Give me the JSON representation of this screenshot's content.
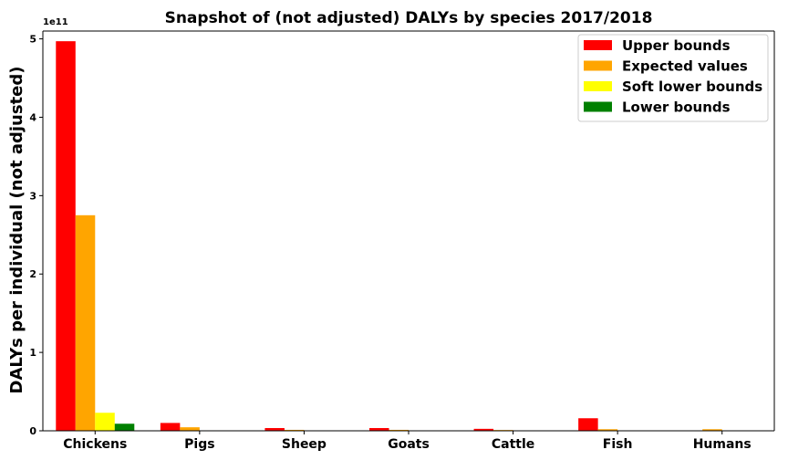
{
  "chart_data": {
    "type": "bar",
    "title": "Snapshot of (not adjusted) DALYs by species 2017/2018",
    "xlabel": "",
    "ylabel": "DALYs per individual (not adjusted)",
    "y_offset_label": "1e11",
    "ylim": [
      0,
      5.1
    ],
    "yticks": [
      "0",
      "1",
      "2",
      "3",
      "4",
      "5"
    ],
    "categories": [
      "Chickens",
      "Pigs",
      "Sheep",
      "Goats",
      "Cattle",
      "Fish",
      "Humans"
    ],
    "series": [
      {
        "name": "Upper bounds",
        "color": "#ff0000",
        "values": [
          4.97,
          0.1,
          0.035,
          0.035,
          0.025,
          0.16,
          0.0
        ]
      },
      {
        "name": "Expected values",
        "color": "#ffa500",
        "values": [
          2.75,
          0.045,
          0.012,
          0.012,
          0.01,
          0.02,
          0.02
        ]
      },
      {
        "name": "Soft lower bounds",
        "color": "#ffff00",
        "values": [
          0.23,
          0.005,
          0.002,
          0.002,
          0.002,
          0.003,
          0.0
        ]
      },
      {
        "name": "Lower bounds",
        "color": "#008000",
        "values": [
          0.09,
          0.002,
          0.001,
          0.001,
          0.001,
          0.001,
          0.0
        ]
      }
    ],
    "legend_position": "top-right",
    "grid": false
  }
}
